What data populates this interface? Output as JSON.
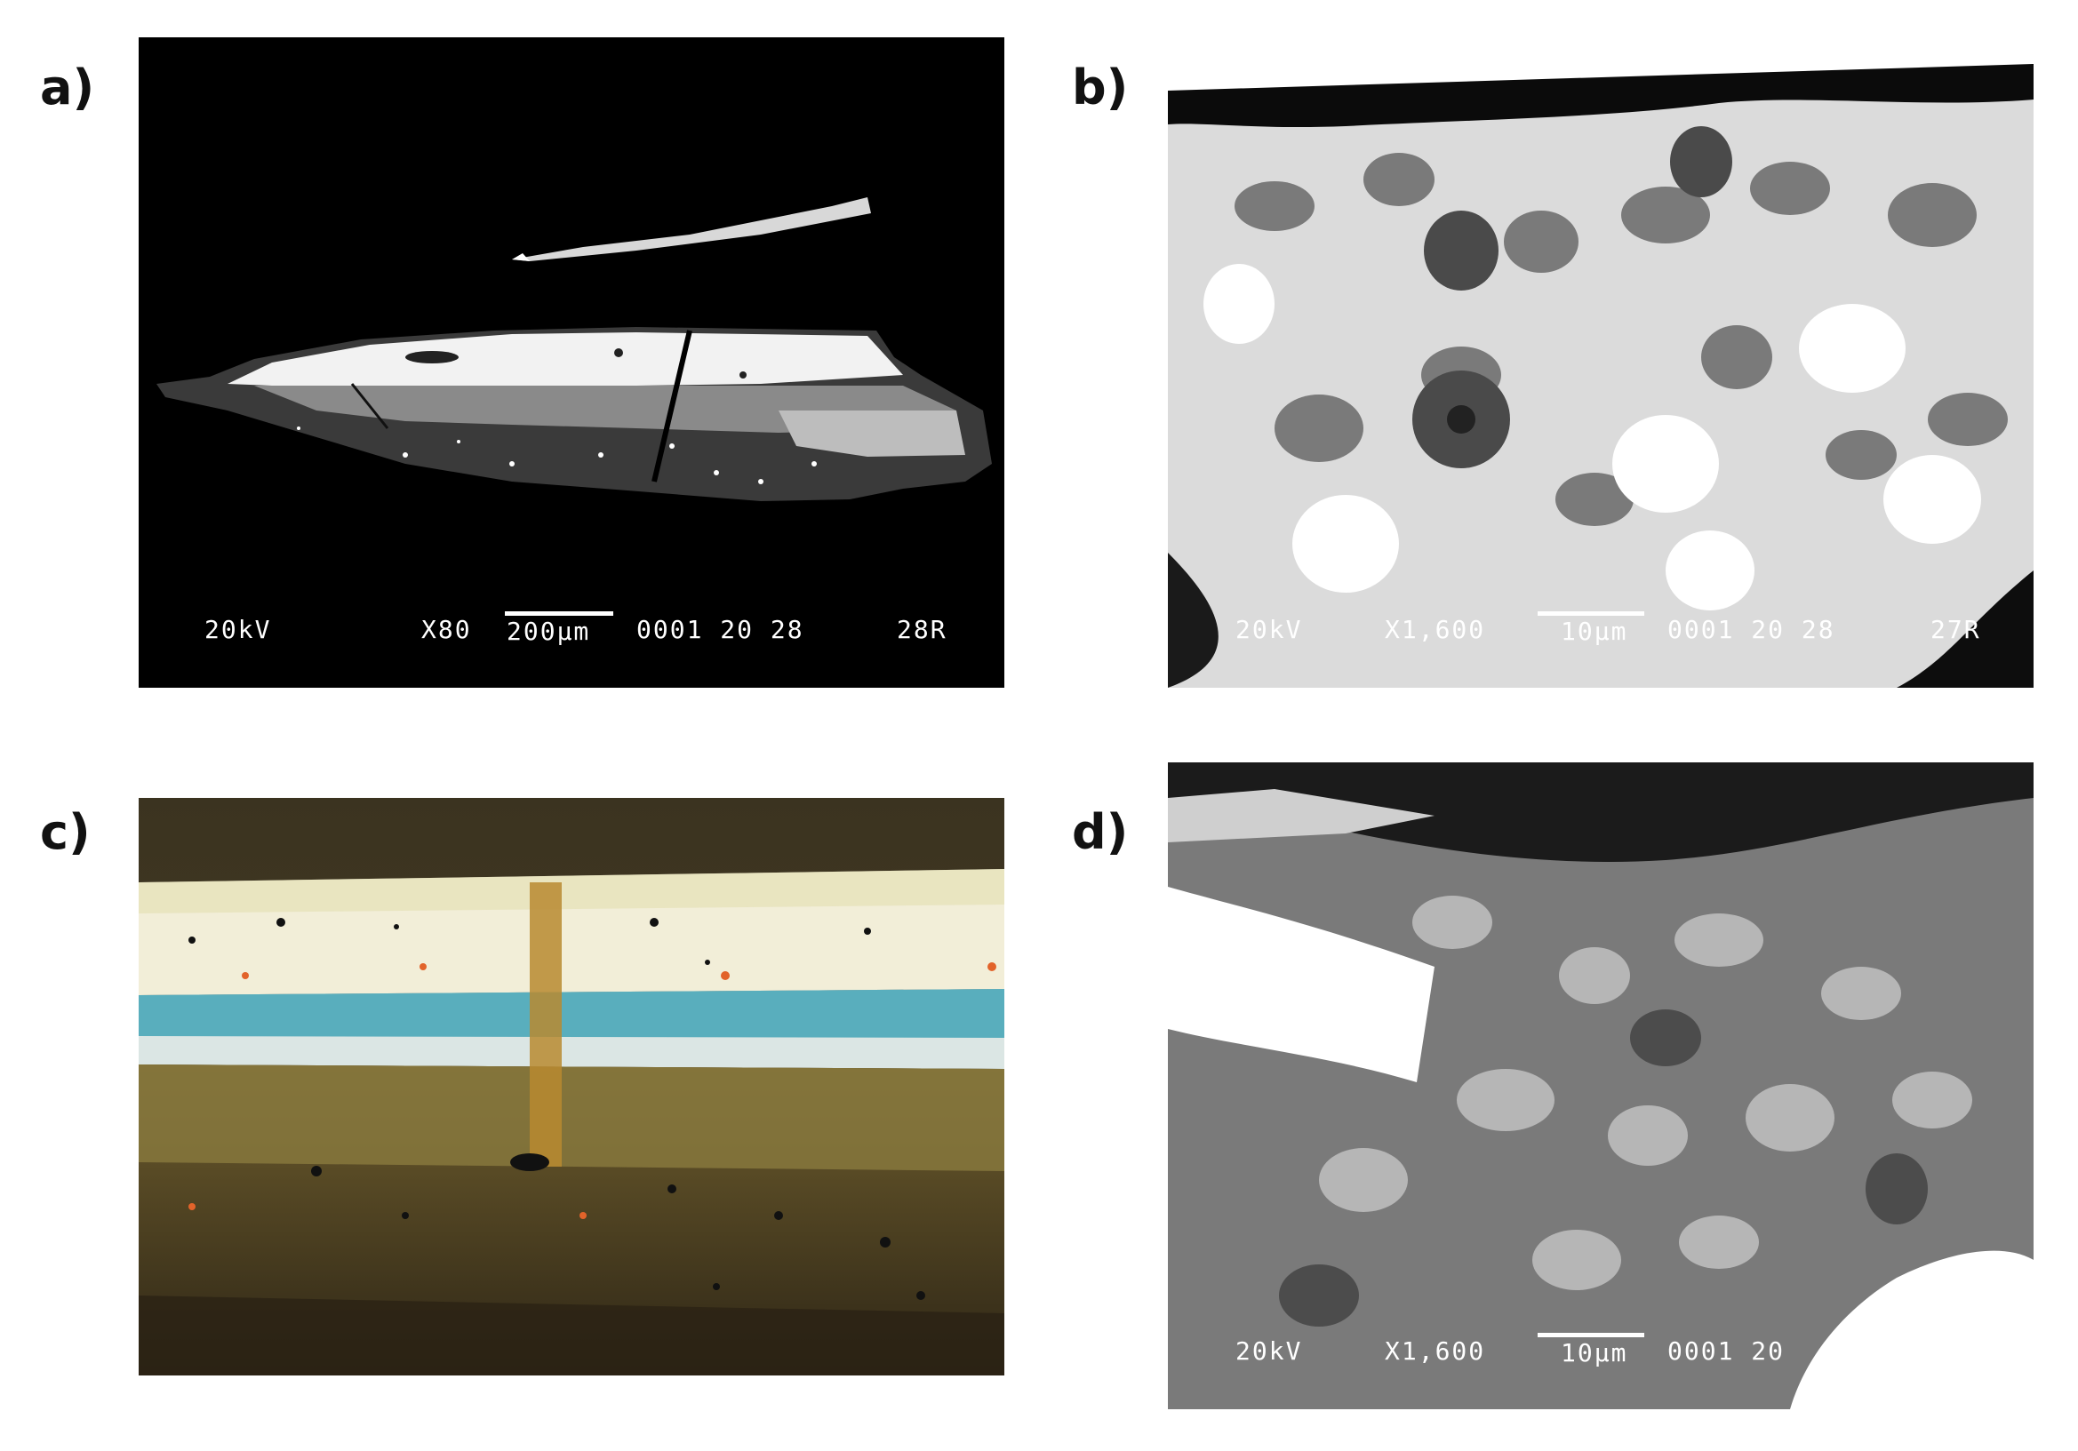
{
  "panels": {
    "a": {
      "label": "a)",
      "sem": {
        "voltage": "20kV",
        "magnification": "X80",
        "scale": "200µm",
        "code": "0001 20 28",
        "id": "28R"
      }
    },
    "b": {
      "label": "b)",
      "sem": {
        "voltage": "20kV",
        "magnification": "X1,600",
        "scale": "10µm",
        "code": "0001 20 28",
        "id": "27R"
      }
    },
    "c": {
      "label": "c)"
    },
    "d": {
      "label": "d)",
      "sem": {
        "voltage": "20kV",
        "magnification": "X1,600",
        "scale": "10µm",
        "code": "0001 20"
      }
    }
  },
  "colors": {
    "sem_background": "#000000",
    "paint_top_white": "#f0ecd8",
    "paint_blue": "#2d9bb0",
    "paint_ground": "#6b5a2a"
  }
}
